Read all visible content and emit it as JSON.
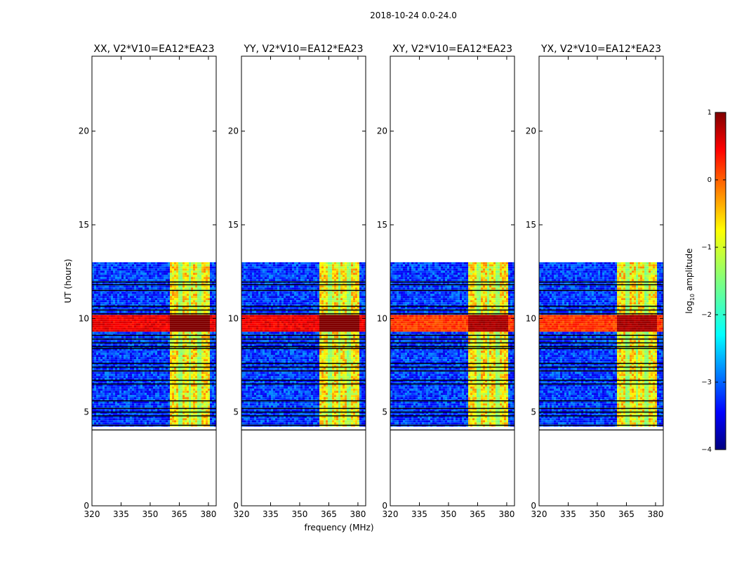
{
  "chart_data": {
    "type": "heatmap",
    "title": "2018-10-24 0.0-24.0",
    "xlabel": "frequency (MHz)",
    "ylabel": "UT (hours)",
    "xlim": [
      320,
      384
    ],
    "ylim": [
      0,
      24
    ],
    "x_ticks": [
      320,
      335,
      350,
      365,
      380
    ],
    "y_ticks": [
      0,
      5,
      10,
      15,
      20
    ],
    "panels": [
      {
        "title": "XX, V2*V10=EA12*EA23",
        "id": "xx"
      },
      {
        "title": "YY, V2*V10=EA12*EA23",
        "id": "yy"
      },
      {
        "title": "XY, V2*V10=EA12*EA23",
        "id": "xy"
      },
      {
        "title": "YX, V2*V10=EA12*EA23",
        "id": "yx"
      }
    ],
    "data_time_range": [
      4.3,
      13.0
    ],
    "background_level": -3.1,
    "signal_band_mhz": [
      360.5,
      380.5
    ],
    "signal_band_dividers_mhz": [
      365.5,
      370.5,
      375.5
    ],
    "signal_level": -1.0,
    "strong_interval_hours": [
      9.3,
      10.2
    ],
    "strong_level": 0.75,
    "strong_cross_level": 0.4,
    "blanked_rows_hours": [
      4.3,
      4.8,
      5.0,
      5.2,
      5.6,
      6.5,
      6.7,
      7.2,
      7.4,
      7.6,
      8.4,
      8.5,
      8.7,
      8.9,
      9.1,
      10.25,
      10.45,
      10.65,
      11.5,
      11.8,
      11.95
    ],
    "colorbar": {
      "label_prefix": "log",
      "label_sub": "10",
      "label_suffix": " amplitude",
      "min": -4,
      "max": 1,
      "ticks": [
        "1",
        "0",
        "−1",
        "−2",
        "−3",
        "−4"
      ],
      "tick_values": [
        1,
        0,
        -1,
        -2,
        -3,
        -4
      ],
      "colormap": "jet"
    }
  }
}
